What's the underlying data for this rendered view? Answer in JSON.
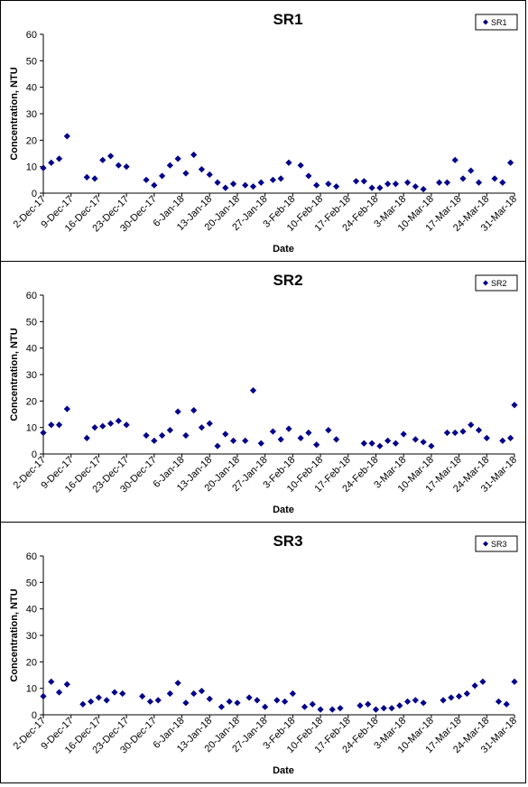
{
  "chart_data": [
    {
      "type": "scatter",
      "title": "SR1",
      "xlabel": "Date",
      "ylabel": "Concentration, NTU",
      "ylim": [
        0,
        60
      ],
      "yticks": [
        0,
        10,
        20,
        30,
        40,
        50,
        60
      ],
      "xticks": [
        "2-Dec-17",
        "9-Dec-17",
        "16-Dec-17",
        "23-Dec-17",
        "30-Dec-17",
        "6-Jan-18",
        "13-Jan-18",
        "20-Jan-18",
        "27-Jan-18",
        "3-Feb-18",
        "10-Feb-18",
        "17-Feb-18",
        "24-Feb-18",
        "3-Mar-18",
        "10-Mar-18",
        "17-Mar-18",
        "24-Mar-18",
        "31-Mar-18"
      ],
      "legend": "top-right",
      "marker_color": "#00008B",
      "series": [
        {
          "name": "SR1",
          "x": [
            "2-Dec-17",
            "4-Dec-17",
            "6-Dec-17",
            "8-Dec-17",
            "13-Dec-17",
            "15-Dec-17",
            "17-Dec-17",
            "19-Dec-17",
            "21-Dec-17",
            "23-Dec-17",
            "28-Dec-17",
            "30-Dec-17",
            "1-Jan-18",
            "3-Jan-18",
            "5-Jan-18",
            "7-Jan-18",
            "9-Jan-18",
            "11-Jan-18",
            "13-Jan-18",
            "15-Jan-18",
            "17-Jan-18",
            "19-Jan-18",
            "22-Jan-18",
            "24-Jan-18",
            "26-Jan-18",
            "29-Jan-18",
            "31-Jan-18",
            "2-Feb-18",
            "5-Feb-18",
            "7-Feb-18",
            "9-Feb-18",
            "12-Feb-18",
            "14-Feb-18",
            "19-Feb-18",
            "21-Feb-18",
            "23-Feb-18",
            "25-Feb-18",
            "27-Feb-18",
            "1-Mar-18",
            "4-Mar-18",
            "6-Mar-18",
            "8-Mar-18",
            "12-Mar-18",
            "14-Mar-18",
            "16-Mar-18",
            "18-Mar-18",
            "20-Mar-18",
            "22-Mar-18",
            "26-Mar-18",
            "28-Mar-18",
            "30-Mar-18"
          ],
          "y": [
            9.5,
            11.5,
            13,
            21.5,
            6,
            5.5,
            12.5,
            14,
            10.5,
            10,
            5,
            3,
            6.5,
            10.5,
            13,
            7.5,
            14.5,
            9,
            7,
            4,
            2,
            3.5,
            3,
            2.5,
            4,
            5,
            5.5,
            11.5,
            10.5,
            6.5,
            3,
            3.5,
            2.5,
            4.5,
            4.5,
            2,
            2,
            3.5,
            3.5,
            4,
            2.5,
            1.5,
            4,
            4,
            12.5,
            5.5,
            8.5,
            4,
            5.5,
            4,
            11.5
          ]
        }
      ]
    },
    {
      "type": "scatter",
      "title": "SR2",
      "xlabel": "Date",
      "ylabel": "Concentration, NTU",
      "ylim": [
        0,
        60
      ],
      "yticks": [
        0,
        10,
        20,
        30,
        40,
        50,
        60
      ],
      "xticks": [
        "2-Dec-17",
        "9-Dec-17",
        "16-Dec-17",
        "23-Dec-17",
        "30-Dec-17",
        "6-Jan-18",
        "13-Jan-18",
        "20-Jan-18",
        "27-Jan-18",
        "3-Feb-18",
        "10-Feb-18",
        "17-Feb-18",
        "24-Feb-18",
        "3-Mar-18",
        "10-Mar-18",
        "17-Mar-18",
        "24-Mar-18",
        "31-Mar-18"
      ],
      "legend": "top-right",
      "marker_color": "#00008B",
      "series": [
        {
          "name": "SR2",
          "x": [
            "2-Dec-17",
            "4-Dec-17",
            "6-Dec-17",
            "8-Dec-17",
            "13-Dec-17",
            "15-Dec-17",
            "17-Dec-17",
            "19-Dec-17",
            "21-Dec-17",
            "23-Dec-17",
            "28-Dec-17",
            "30-Dec-17",
            "1-Jan-18",
            "3-Jan-18",
            "5-Jan-18",
            "7-Jan-18",
            "9-Jan-18",
            "11-Jan-18",
            "13-Jan-18",
            "15-Jan-18",
            "17-Jan-18",
            "19-Jan-18",
            "22-Jan-18",
            "24-Jan-18",
            "26-Jan-18",
            "29-Jan-18",
            "31-Jan-18",
            "2-Feb-18",
            "5-Feb-18",
            "7-Feb-18",
            "9-Feb-18",
            "12-Feb-18",
            "14-Feb-18",
            "21-Feb-18",
            "23-Feb-18",
            "25-Feb-18",
            "27-Feb-18",
            "1-Mar-18",
            "3-Mar-18",
            "6-Mar-18",
            "8-Mar-18",
            "10-Mar-18",
            "14-Mar-18",
            "16-Mar-18",
            "18-Mar-18",
            "20-Mar-18",
            "22-Mar-18",
            "24-Mar-18",
            "28-Mar-18",
            "30-Mar-18",
            "31-Mar-18"
          ],
          "y": [
            8,
            11,
            11,
            17,
            6,
            10,
            10.5,
            11.5,
            12.5,
            11,
            7,
            5,
            7,
            9,
            16,
            7,
            16.5,
            10,
            11.5,
            3,
            7.5,
            5,
            5,
            24,
            4,
            8.5,
            5.5,
            9.5,
            6,
            8,
            3.5,
            9,
            5.5,
            4,
            4,
            3,
            5,
            4,
            7.5,
            5.5,
            4.5,
            3,
            8,
            8,
            8.5,
            11,
            9,
            6,
            5,
            6,
            18.5
          ]
        }
      ]
    },
    {
      "type": "scatter",
      "title": "SR3",
      "xlabel": "Date",
      "ylabel": "Concentration, NTU",
      "ylim": [
        0,
        60
      ],
      "yticks": [
        0,
        10,
        20,
        30,
        40,
        50,
        60
      ],
      "xticks": [
        "2-Dec-17",
        "9-Dec-17",
        "16-Dec-17",
        "23-Dec-17",
        "30-Dec-17",
        "6-Jan-18",
        "13-Jan-18",
        "20-Jan-18",
        "27-Jan-18",
        "3-Feb-18",
        "10-Feb-18",
        "17-Feb-18",
        "24-Feb-18",
        "3-Mar-18",
        "10-Mar-18",
        "17-Mar-18",
        "24-Mar-18",
        "31-Mar-18"
      ],
      "legend": "top-right",
      "marker_color": "#00008B",
      "series": [
        {
          "name": "SR3",
          "x": [
            "2-Dec-17",
            "4-Dec-17",
            "6-Dec-17",
            "8-Dec-17",
            "12-Dec-17",
            "14-Dec-17",
            "16-Dec-17",
            "18-Dec-17",
            "20-Dec-17",
            "22-Dec-17",
            "27-Dec-17",
            "29-Dec-17",
            "31-Dec-17",
            "3-Jan-18",
            "5-Jan-18",
            "7-Jan-18",
            "9-Jan-18",
            "11-Jan-18",
            "13-Jan-18",
            "16-Jan-18",
            "18-Jan-18",
            "20-Jan-18",
            "23-Jan-18",
            "25-Jan-18",
            "27-Jan-18",
            "30-Jan-18",
            "1-Feb-18",
            "3-Feb-18",
            "6-Feb-18",
            "8-Feb-18",
            "10-Feb-18",
            "13-Feb-18",
            "15-Feb-18",
            "20-Feb-18",
            "22-Feb-18",
            "24-Feb-18",
            "26-Feb-18",
            "28-Feb-18",
            "2-Mar-18",
            "4-Mar-18",
            "6-Mar-18",
            "8-Mar-18",
            "13-Mar-18",
            "15-Mar-18",
            "17-Mar-18",
            "19-Mar-18",
            "21-Mar-18",
            "23-Mar-18",
            "27-Mar-18",
            "29-Mar-18",
            "31-Mar-18"
          ],
          "y": [
            7,
            12.5,
            8.5,
            11.5,
            4,
            5,
            6.5,
            5.5,
            8.5,
            8,
            7,
            5,
            5.5,
            8,
            12,
            4.5,
            8,
            9,
            6,
            3,
            5,
            4.5,
            6.5,
            5.5,
            3,
            5.5,
            5,
            8,
            3,
            4,
            2,
            2,
            2.5,
            3.5,
            4,
            2,
            2.5,
            2.5,
            3.5,
            5,
            5.5,
            4.5,
            5.5,
            6.5,
            7,
            8,
            11,
            12.5,
            5,
            4,
            12.5
          ]
        }
      ]
    }
  ]
}
